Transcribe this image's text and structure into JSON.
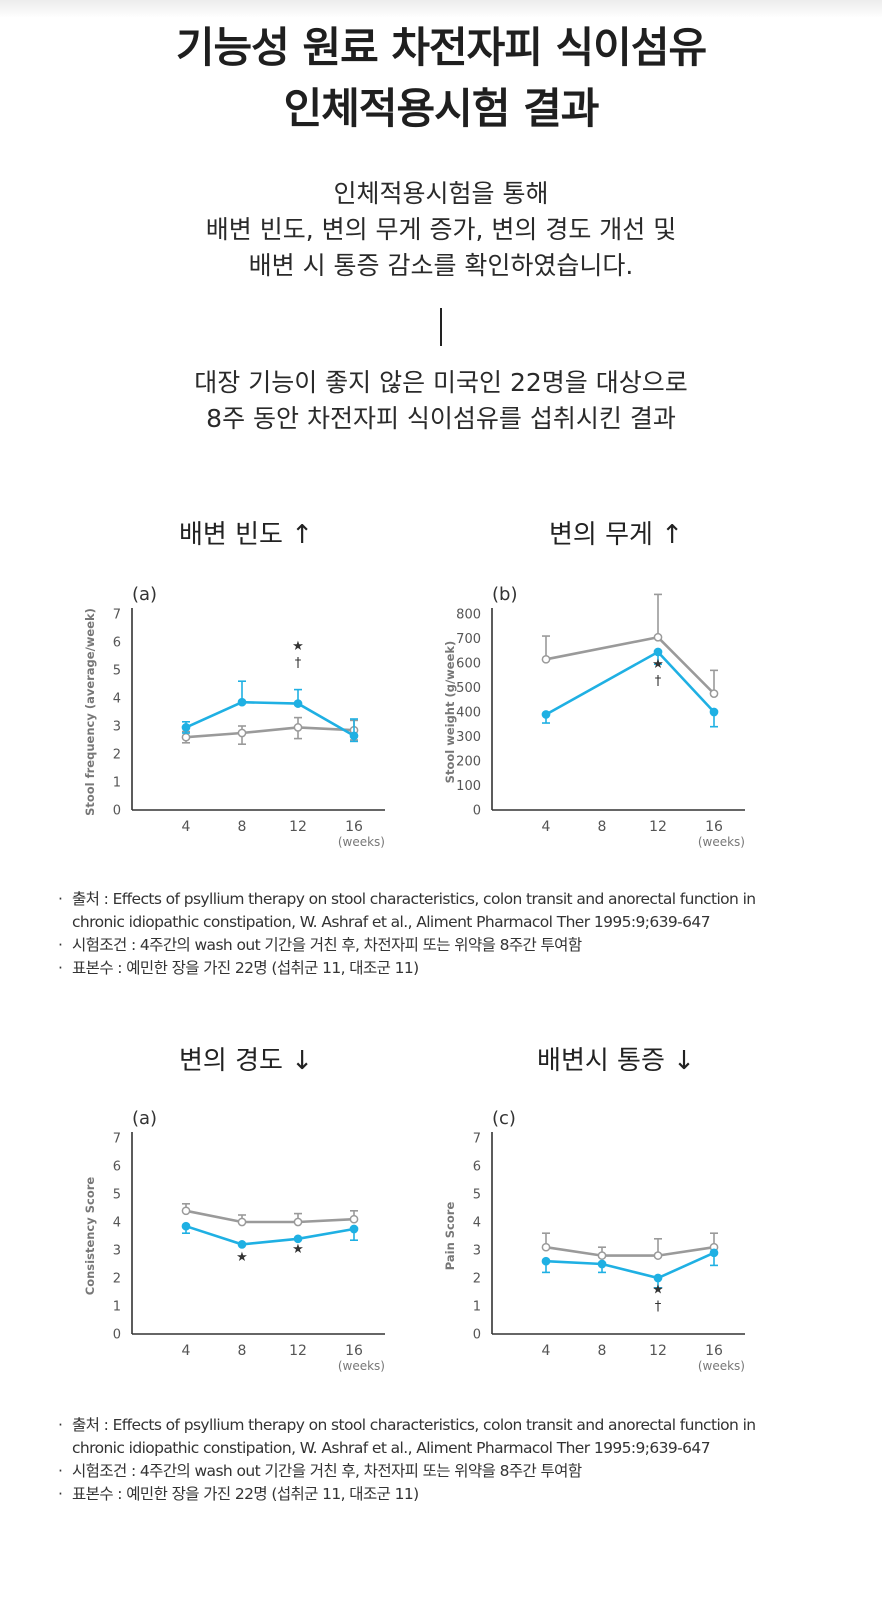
{
  "header": {
    "title_line1": "기능성 원료 차전자피 식이섬유",
    "title_line2": "인체적용시험 결과"
  },
  "intro": {
    "p1_line1": "인체적용시험을 통해",
    "p1_line2": "배변 빈도, 변의 무게 증가, 변의 경도 개선 및",
    "p1_line3": "배변 시 통증 감소를 확인하였습니다.",
    "p2_line1": "대장 기능이 좋지 않은 미국인 22명을 대상으로",
    "p2_line2": "8주 동안 차전자피 식이섬유를 섭취시킨 결과"
  },
  "colors": {
    "psyllium": "#1fb0e3",
    "placebo": "#9a9a9a",
    "axis": "#333333"
  },
  "charts": {
    "frequency": {
      "heading": "배변 빈도 ↑"
    },
    "weight": {
      "heading": "변의 무게 ↑"
    },
    "consistency": {
      "heading": "변의 경도 ↓"
    },
    "pain": {
      "heading": "배변시 통증 ↓"
    }
  },
  "chart_data": [
    {
      "id": "frequency",
      "type": "line",
      "panel_label": "(a)",
      "ylabel": "Stool frequency (average/week)",
      "x_unit": "(weeks)",
      "x": [
        4,
        8,
        12,
        16
      ],
      "yticks": [
        0,
        1,
        2,
        3,
        4,
        5,
        6,
        7
      ],
      "ylim": [
        0,
        7
      ],
      "series": [
        {
          "key": "placebo",
          "hollow": true,
          "values": [
            2.6,
            2.75,
            2.95,
            2.85
          ],
          "err_hi": [
            2.8,
            3.0,
            3.3,
            3.2
          ],
          "err_lo": [
            2.4,
            2.35,
            2.55,
            2.5
          ]
        },
        {
          "key": "psyllium",
          "hollow": false,
          "values": [
            2.95,
            3.85,
            3.8,
            2.65
          ],
          "err_hi": [
            3.15,
            4.6,
            4.3,
            3.25
          ],
          "err_lo": [
            2.75,
            3.85,
            3.8,
            2.45
          ]
        }
      ],
      "annotations": [
        {
          "x": 12,
          "y": 5.1,
          "lines": [
            "★",
            "†"
          ],
          "dir": "up"
        }
      ]
    },
    {
      "id": "weight",
      "type": "line",
      "panel_label": "(b)",
      "ylabel": "Stool weight (g/week)",
      "x_unit": "(weeks)",
      "x": [
        4,
        8,
        12,
        16
      ],
      "yticks": [
        0,
        100,
        200,
        300,
        400,
        500,
        600,
        700,
        800
      ],
      "ylim": [
        0,
        800
      ],
      "series": [
        {
          "key": "placebo",
          "hollow": true,
          "values": [
            615,
            null,
            705,
            475
          ],
          "err_hi": [
            710,
            null,
            880,
            570
          ],
          "err_lo": [
            615,
            null,
            705,
            475
          ]
        },
        {
          "key": "psyllium",
          "hollow": false,
          "values": [
            390,
            null,
            645,
            400
          ],
          "err_hi": [
            390,
            null,
            645,
            400
          ],
          "err_lo": [
            355,
            null,
            595,
            340
          ]
        }
      ],
      "annotations": [
        {
          "x": 12,
          "y": 580,
          "lines": [
            "★",
            "†"
          ],
          "dir": "down"
        }
      ]
    },
    {
      "id": "consistency",
      "type": "line",
      "panel_label": "(a)",
      "ylabel": "Consistency Score",
      "x_unit": "(weeks)",
      "x": [
        4,
        8,
        12,
        16
      ],
      "yticks": [
        0,
        1,
        2,
        3,
        4,
        5,
        6,
        7
      ],
      "ylim": [
        0,
        7
      ],
      "series": [
        {
          "key": "placebo",
          "hollow": true,
          "values": [
            4.4,
            4.0,
            4.0,
            4.1
          ],
          "err_hi": [
            4.65,
            4.25,
            4.3,
            4.4
          ],
          "err_lo": [
            4.4,
            4.0,
            4.0,
            4.1
          ]
        },
        {
          "key": "psyllium",
          "hollow": false,
          "values": [
            3.85,
            3.2,
            3.4,
            3.75
          ],
          "err_hi": [
            3.85,
            3.2,
            3.4,
            3.75
          ],
          "err_lo": [
            3.6,
            3.2,
            3.4,
            3.35
          ]
        }
      ],
      "annotations": [
        {
          "x": 8,
          "y": 2.6,
          "lines": [
            "★"
          ],
          "dir": "down"
        },
        {
          "x": 12,
          "y": 2.9,
          "lines": [
            "★"
          ],
          "dir": "down"
        }
      ]
    },
    {
      "id": "pain",
      "type": "line",
      "panel_label": "(c)",
      "ylabel": "Pain Score",
      "x_unit": "(weeks)",
      "x": [
        4,
        8,
        12,
        16
      ],
      "yticks": [
        0,
        1,
        2,
        3,
        4,
        5,
        6,
        7
      ],
      "ylim": [
        0,
        7
      ],
      "series": [
        {
          "key": "placebo",
          "hollow": true,
          "values": [
            3.1,
            2.8,
            2.8,
            3.1
          ],
          "err_hi": [
            3.6,
            3.1,
            3.4,
            3.6
          ],
          "err_lo": [
            3.1,
            2.8,
            2.8,
            3.1
          ]
        },
        {
          "key": "psyllium",
          "hollow": false,
          "values": [
            2.6,
            2.5,
            2.0,
            2.9
          ],
          "err_hi": [
            2.6,
            2.5,
            2.0,
            2.9
          ],
          "err_lo": [
            2.2,
            2.2,
            1.65,
            2.45
          ]
        }
      ],
      "annotations": [
        {
          "x": 12,
          "y": 1.45,
          "lines": [
            "★",
            "†"
          ],
          "dir": "down"
        }
      ]
    }
  ],
  "notes_top": {
    "source_label": "출처 : ",
    "source_line1": "Effects of psyllium therapy on stool characteristics, colon transit and anorectal function in",
    "source_line2": "chronic idiopathic constipation, W. Ashraf et al., Aliment Pharmacol Ther 1995:9;639-647",
    "conditions": "시험조건 : 4주간의 wash out 기간을 거친 후, 차전자피 또는 위약을 8주간 투여함",
    "sample": "표본수 : 예민한 장을 가진 22명 (섭취군 11, 대조군 11)"
  },
  "notes_bottom": {
    "source_label": "출처 : ",
    "source_line1": "Effects of psyllium therapy on stool characteristics, colon transit and anorectal function in",
    "source_line2": "chronic idiopathic constipation, W. Ashraf et al., Aliment Pharmacol Ther 1995:9;639-647",
    "conditions": "시험조건 : 4주간의 wash out 기간을 거친 후, 차전자피 또는 위약을 8주간 투여함",
    "sample": "표본수 : 예민한 장을 가진 22명 (섭취군 11, 대조군 11)"
  }
}
